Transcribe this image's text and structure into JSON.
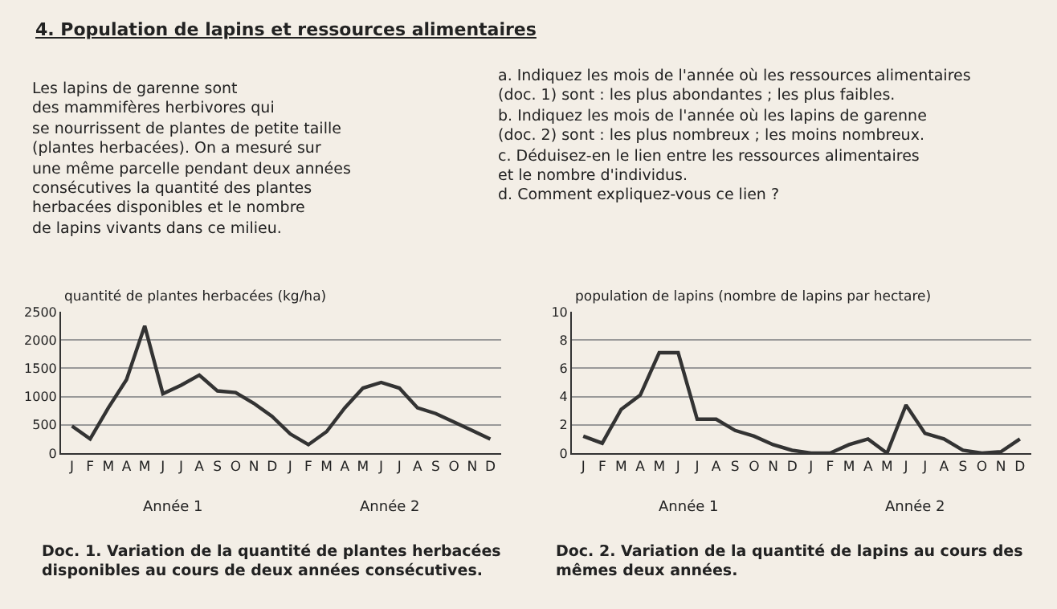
{
  "chart_data": [
    {
      "type": "line",
      "title": "4. Population de lapins et ressources alimentaires",
      "subtitle": "Les lapins de garenne sont\ndes mammifères herbivores qui\nse nourrissent de plantes de petite taille\n(plantes herbacées). On a mesuré sur\nune même parcelle pendant deux années\nconsécutives la quantité des plantes\nherbacées disponibles et le nombre\nde lapins vivants dans ce milieu.",
      "ylabel": "quantité de plantes herbacées (kg/ha)",
      "categories": [
        "J",
        "F",
        "M",
        "A",
        "M",
        "J",
        "J",
        "A",
        "S",
        "O",
        "N",
        "D",
        "J",
        "F",
        "M",
        "A",
        "M",
        "J",
        "J",
        "A",
        "S",
        "O",
        "N",
        "D"
      ],
      "series": [
        {
          "color": "#333333",
          "values": [
            480,
            250,
            800,
            1300,
            2250,
            1050,
            1200,
            1380,
            1100,
            1070,
            880,
            650,
            340,
            150,
            380,
            800,
            1150,
            1250,
            1150,
            800,
            700,
            550,
            400,
            250
          ]
        }
      ],
      "ylim": [
        0,
        2500
      ],
      "yticks": [
        0,
        500,
        1000,
        1500,
        2000,
        2500
      ],
      "grid": "y",
      "marker": "none",
      "line_style": "solid",
      "legend": false,
      "annotations": [
        "Année 1",
        "Année 2",
        "Doc. 1. Variation de la quantité de plantes herbacées disponibles au cours de deux années consécutives."
      ]
    },
    {
      "type": "line",
      "subtitle": "a. Indiquez les mois de l'année où les ressources alimentaires\n(doc. 1) sont : les plus abondantes ; les plus faibles.\nb. Indiquez les mois de l'année où les lapins de garenne\n(doc. 2) sont : les plus nombreux ; les moins nombreux.\nc. Déduisez-en le lien entre les ressources alimentaires\net le nombre d'individus.\nd. Comment expliquez-vous ce lien ?",
      "ylabel": "population de lapins (nombre de lapins par hectare)",
      "categories": [
        "J",
        "F",
        "M",
        "A",
        "M",
        "J",
        "J",
        "A",
        "S",
        "O",
        "N",
        "D",
        "J",
        "F",
        "M",
        "A",
        "M",
        "J",
        "J",
        "A",
        "S",
        "O",
        "N",
        "D"
      ],
      "series": [
        {
          "color": "#333333",
          "values": [
            1.2,
            0.7,
            3.1,
            4.1,
            7.1,
            7.1,
            2.4,
            2.4,
            1.6,
            1.2,
            0.6,
            0.2,
            0,
            0,
            0.6,
            1.0,
            0,
            3.4,
            1.4,
            1.0,
            0.2,
            0,
            0.1,
            1.0
          ]
        }
      ],
      "ylim": [
        0,
        10
      ],
      "yticks": [
        0,
        2,
        4,
        6,
        8,
        10
      ],
      "grid": "y",
      "marker": "none",
      "line_style": "solid",
      "legend": false,
      "annotations": [
        "Année 1",
        "Année 2",
        "Doc. 2. Variation de la quantité de lapins au cours des mêmes deux années."
      ]
    }
  ]
}
